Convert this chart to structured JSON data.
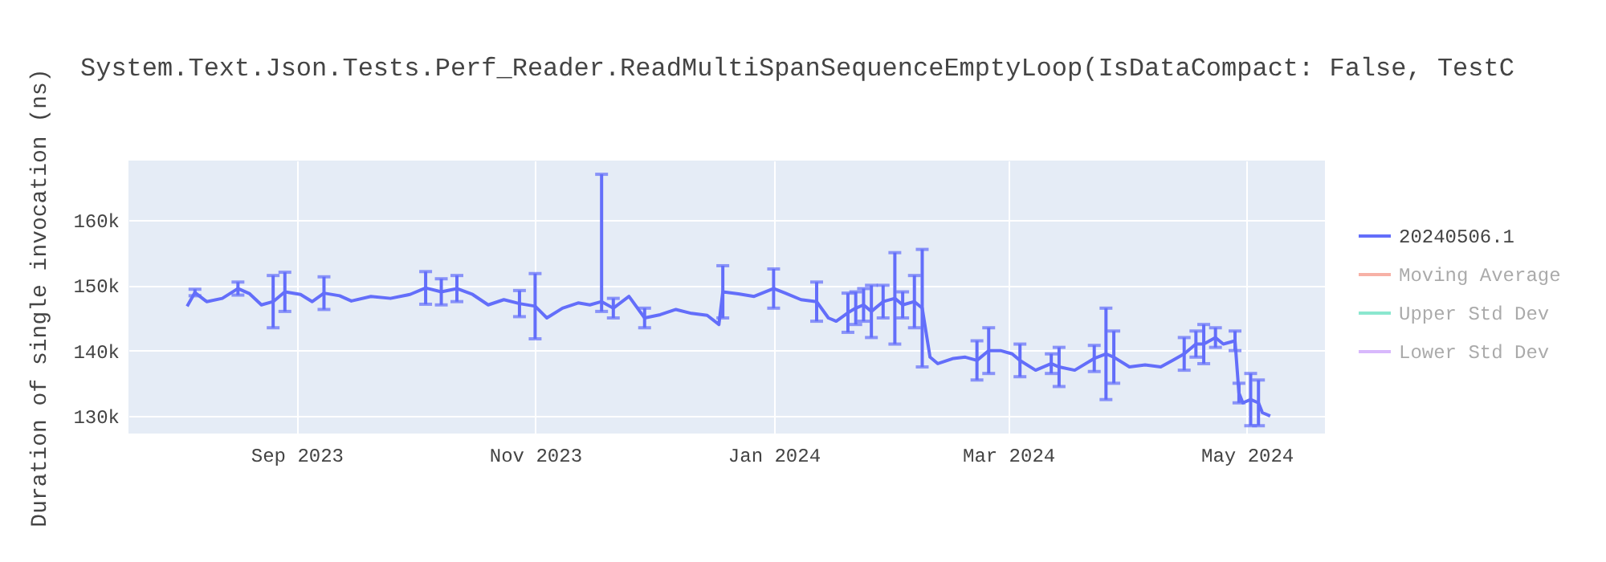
{
  "chart_data": {
    "type": "line",
    "title": "System.Text.Json.Tests.Perf_Reader.ReadMultiSpanSequenceEmptyLoop(IsDataCompact: False, TestC",
    "ylabel": "Duration of single invocation (ns)",
    "x": [
      "2023-08-04",
      "2023-08-06",
      "2023-08-09",
      "2023-08-13",
      "2023-08-17",
      "2023-08-20",
      "2023-08-23",
      "2023-08-26",
      "2023-08-29",
      "2023-09-02",
      "2023-09-05",
      "2023-09-08",
      "2023-09-12",
      "2023-09-15",
      "2023-09-20",
      "2023-09-25",
      "2023-09-30",
      "2023-10-04",
      "2023-10-08",
      "2023-10-12",
      "2023-10-16",
      "2023-10-20",
      "2023-10-24",
      "2023-10-28",
      "2023-11-01",
      "2023-11-04",
      "2023-11-08",
      "2023-11-12",
      "2023-11-15",
      "2023-11-18",
      "2023-11-21",
      "2023-11-25",
      "2023-11-29",
      "2023-12-03",
      "2023-12-07",
      "2023-12-11",
      "2023-12-15",
      "2023-12-18",
      "2023-12-19",
      "2023-12-23",
      "2023-12-27",
      "2024-01-01",
      "2024-01-04",
      "2024-01-08",
      "2024-01-12",
      "2024-01-15",
      "2024-01-17",
      "2024-01-20",
      "2024-01-22",
      "2024-01-24",
      "2024-01-26",
      "2024-01-29",
      "2024-02-01",
      "2024-02-03",
      "2024-02-06",
      "2024-02-08",
      "2024-02-10",
      "2024-02-12",
      "2024-02-16",
      "2024-02-19",
      "2024-02-22",
      "2024-02-25",
      "2024-02-28",
      "2024-03-02",
      "2024-03-04",
      "2024-03-08",
      "2024-03-12",
      "2024-03-14",
      "2024-03-18",
      "2024-03-23",
      "2024-03-26",
      "2024-03-28",
      "2024-04-01",
      "2024-04-05",
      "2024-04-09",
      "2024-04-12",
      "2024-04-15",
      "2024-04-18",
      "2024-04-20",
      "2024-04-23",
      "2024-04-25",
      "2024-04-28",
      "2024-04-29",
      "2024-04-30",
      "2024-05-02",
      "2024-05-04",
      "2024-05-05",
      "2024-05-07"
    ],
    "series": [
      {
        "name": "20240506.1",
        "color": "#636efa",
        "values": [
          146800,
          148900,
          147500,
          148000,
          149500,
          148700,
          147000,
          147500,
          149000,
          148600,
          147500,
          148800,
          148400,
          147600,
          148300,
          148000,
          148600,
          149600,
          149000,
          149500,
          148600,
          147000,
          147800,
          147200,
          146800,
          145000,
          146500,
          147300,
          147000,
          147500,
          146500,
          148300,
          145000,
          145500,
          146300,
          145700,
          145400,
          144000,
          149000,
          148700,
          148300,
          149500,
          148800,
          147800,
          147500,
          145000,
          144500,
          145800,
          146500,
          147000,
          146000,
          147500,
          148000,
          147000,
          147500,
          146500,
          139000,
          138000,
          138800,
          139000,
          138500,
          140000,
          140000,
          139500,
          138500,
          137000,
          138000,
          137500,
          137000,
          138800,
          139500,
          139000,
          137500,
          137800,
          137500,
          138500,
          139500,
          141000,
          141000,
          142000,
          141000,
          141500,
          133500,
          132000,
          132500,
          132000,
          130500,
          130000
        ],
        "errors": [
          null,
          500,
          null,
          null,
          1000,
          null,
          null,
          4000,
          3000,
          null,
          null,
          2500,
          null,
          null,
          null,
          null,
          null,
          2500,
          2000,
          2000,
          null,
          null,
          null,
          2000,
          5000,
          null,
          null,
          null,
          null,
          [
            146000,
            167000
          ],
          1500,
          null,
          1500,
          null,
          null,
          null,
          null,
          null,
          4000,
          null,
          null,
          3000,
          null,
          null,
          3000,
          null,
          null,
          3000,
          2500,
          2500,
          4000,
          2500,
          7000,
          2000,
          4000,
          9000,
          null,
          null,
          null,
          null,
          3000,
          3500,
          null,
          null,
          2500,
          null,
          1500,
          3000,
          null,
          2000,
          7000,
          4000,
          null,
          null,
          null,
          null,
          2500,
          2000,
          3000,
          1500,
          null,
          1500,
          1500,
          null,
          4000,
          3500,
          null,
          null
        ]
      },
      {
        "name": "Moving Average",
        "color": "#ef553b",
        "values": [
          null,
          null,
          null,
          null,
          null,
          null,
          null,
          null,
          null,
          null,
          null,
          null,
          null,
          null,
          null,
          null,
          null,
          null,
          null,
          null,
          null,
          null,
          null,
          null,
          null,
          null,
          null,
          null,
          null,
          null,
          null,
          null,
          null,
          null,
          null,
          null,
          null,
          null,
          null,
          null,
          null,
          null,
          null,
          null,
          null,
          null,
          null,
          null,
          null,
          null,
          null,
          null,
          null,
          null,
          null,
          null,
          null,
          null,
          null,
          null,
          null,
          null,
          null,
          null,
          null,
          null,
          null,
          null,
          null,
          null,
          null,
          null,
          null,
          null,
          null,
          null,
          null,
          null,
          null,
          null,
          null,
          null,
          null,
          null,
          null,
          null,
          null,
          null
        ]
      },
      {
        "name": "Upper Std Dev",
        "color": "#00cc96",
        "values": [
          null,
          null,
          null,
          null,
          null,
          null,
          null,
          null,
          null,
          null,
          null,
          null,
          null,
          null,
          null,
          null,
          null,
          null,
          null,
          null,
          null,
          null,
          null,
          null,
          null,
          null,
          null,
          null,
          null,
          null,
          null,
          null,
          null,
          null,
          null,
          null,
          null,
          null,
          null,
          null,
          null,
          null,
          null,
          null,
          null,
          null,
          null,
          null,
          null,
          null,
          null,
          null,
          null,
          null,
          null,
          null,
          null,
          null,
          null,
          null,
          null,
          null,
          null,
          null,
          null,
          null,
          null,
          null,
          null,
          null,
          null,
          null,
          null,
          null,
          null,
          null,
          null,
          null,
          null,
          null,
          null,
          null,
          null,
          null,
          null,
          null,
          null,
          null
        ]
      },
      {
        "name": "Lower Std Dev",
        "color": "#ab63fa",
        "values": [
          null,
          null,
          null,
          null,
          null,
          null,
          null,
          null,
          null,
          null,
          null,
          null,
          null,
          null,
          null,
          null,
          null,
          null,
          null,
          null,
          null,
          null,
          null,
          null,
          null,
          null,
          null,
          null,
          null,
          null,
          null,
          null,
          null,
          null,
          null,
          null,
          null,
          null,
          null,
          null,
          null,
          null,
          null,
          null,
          null,
          null,
          null,
          null,
          null,
          null,
          null,
          null,
          null,
          null,
          null,
          null,
          null,
          null,
          null,
          null,
          null,
          null,
          null,
          null,
          null,
          null,
          null,
          null,
          null,
          null,
          null,
          null,
          null,
          null,
          null,
          null,
          null,
          null,
          null,
          null,
          null,
          null,
          null,
          null,
          null,
          null,
          null,
          null
        ]
      }
    ],
    "xlim": [
      "2023-07-20",
      "2024-05-21"
    ],
    "xticks": [
      {
        "value": "2023-09-01",
        "label": "Sep 2023"
      },
      {
        "value": "2023-11-01",
        "label": "Nov 2023"
      },
      {
        "value": "2024-01-01",
        "label": "Jan 2024"
      },
      {
        "value": "2024-03-01",
        "label": "Mar 2024"
      },
      {
        "value": "2024-05-01",
        "label": "May 2024"
      }
    ],
    "ylim": [
      127300,
      169100
    ],
    "yticks": [
      {
        "value": 130000,
        "label": "130k"
      },
      {
        "value": 140000,
        "label": "140k"
      },
      {
        "value": 150000,
        "label": "150k"
      },
      {
        "value": 160000,
        "label": "160k"
      }
    ],
    "grid": true,
    "legend": "top right",
    "marker": "none",
    "line_style": "solid"
  }
}
